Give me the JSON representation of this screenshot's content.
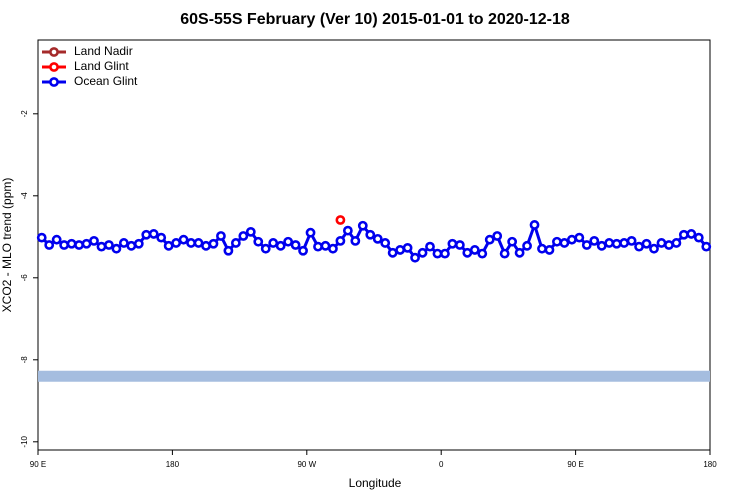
{
  "chart_data": {
    "type": "line",
    "title": "60S-55S February (Ver 10)   2015-01-01 to 2020-12-18",
    "xlabel": "Longitude",
    "ylabel": "XCO2 - MLO trend (ppm)",
    "xlim": [
      90,
      540
    ],
    "ylim": [
      -10.2,
      -0.2
    ],
    "xticks": [
      {
        "value": 90,
        "label": "90 E"
      },
      {
        "value": 180,
        "label": "180"
      },
      {
        "value": 270,
        "label": "90 W"
      },
      {
        "value": 360,
        "label": "0"
      },
      {
        "value": 450,
        "label": "90 E"
      },
      {
        "value": 540,
        "label": "180"
      }
    ],
    "yticks": [
      -10,
      -8,
      -6,
      -4,
      -2
    ],
    "legend": "top-left",
    "reference_band": {
      "value": -8.4,
      "color": "#a5bddf"
    },
    "series": [
      {
        "name": "Land Nadir",
        "color": "#a52a2a",
        "x": [],
        "values": []
      },
      {
        "name": "Land Glint",
        "color": "#ff0000",
        "x": [
          292.5
        ],
        "values": [
          -4.59
        ]
      },
      {
        "name": "Ocean Glint",
        "color": "#0000ee",
        "x": [
          92.5,
          97.5,
          102.5,
          107.5,
          112.5,
          117.5,
          122.5,
          127.5,
          132.5,
          137.5,
          142.5,
          147.5,
          152.5,
          157.5,
          162.5,
          167.5,
          172.5,
          177.5,
          182.5,
          187.5,
          192.5,
          197.5,
          202.5,
          207.5,
          212.5,
          217.5,
          222.5,
          227.5,
          232.5,
          237.5,
          242.5,
          247.5,
          252.5,
          257.5,
          262.5,
          267.5,
          272.5,
          277.5,
          282.5,
          287.5,
          292.5,
          297.5,
          302.5,
          307.5,
          312.5,
          317.5,
          322.5,
          327.5,
          332.5,
          337.5,
          342.5,
          347.5,
          352.5,
          357.5,
          362.5,
          367.5,
          372.5,
          377.5,
          382.5,
          387.5,
          392.5,
          397.5,
          402.5,
          407.5,
          412.5,
          417.5,
          422.5,
          427.5,
          432.5,
          437.5,
          442.5,
          447.5,
          452.5,
          457.5,
          462.5,
          467.5,
          472.5,
          477.5,
          482.5,
          487.5,
          492.5,
          497.5,
          502.5,
          507.5,
          512.5,
          517.5,
          522.5,
          527.5,
          532.5,
          537.5
        ],
        "values": [
          -5.02,
          -5.2,
          -5.07,
          -5.2,
          -5.17,
          -5.2,
          -5.17,
          -5.1,
          -5.24,
          -5.2,
          -5.29,
          -5.15,
          -5.22,
          -5.17,
          -4.95,
          -4.93,
          -5.02,
          -5.22,
          -5.15,
          -5.07,
          -5.15,
          -5.15,
          -5.22,
          -5.17,
          -4.98,
          -5.34,
          -5.15,
          -4.98,
          -4.88,
          -5.12,
          -5.29,
          -5.15,
          -5.22,
          -5.12,
          -5.2,
          -5.34,
          -4.9,
          -5.24,
          -5.22,
          -5.29,
          -5.1,
          -4.85,
          -5.1,
          -4.73,
          -4.95,
          -5.05,
          -5.15,
          -5.39,
          -5.32,
          -5.27,
          -5.51,
          -5.39,
          -5.24,
          -5.41,
          -5.41,
          -5.17,
          -5.2,
          -5.39,
          -5.32,
          -5.41,
          -5.07,
          -4.98,
          -5.41,
          -5.12,
          -5.39,
          -5.22,
          -4.71,
          -5.29,
          -5.32,
          -5.12,
          -5.15,
          -5.07,
          -5.02,
          -5.2,
          -5.1,
          -5.22,
          -5.15,
          -5.17,
          -5.15,
          -5.1,
          -5.24,
          -5.17,
          -5.29,
          -5.15,
          -5.2,
          -5.15,
          -4.95,
          -4.93,
          -5.02,
          -5.24
        ]
      }
    ]
  }
}
